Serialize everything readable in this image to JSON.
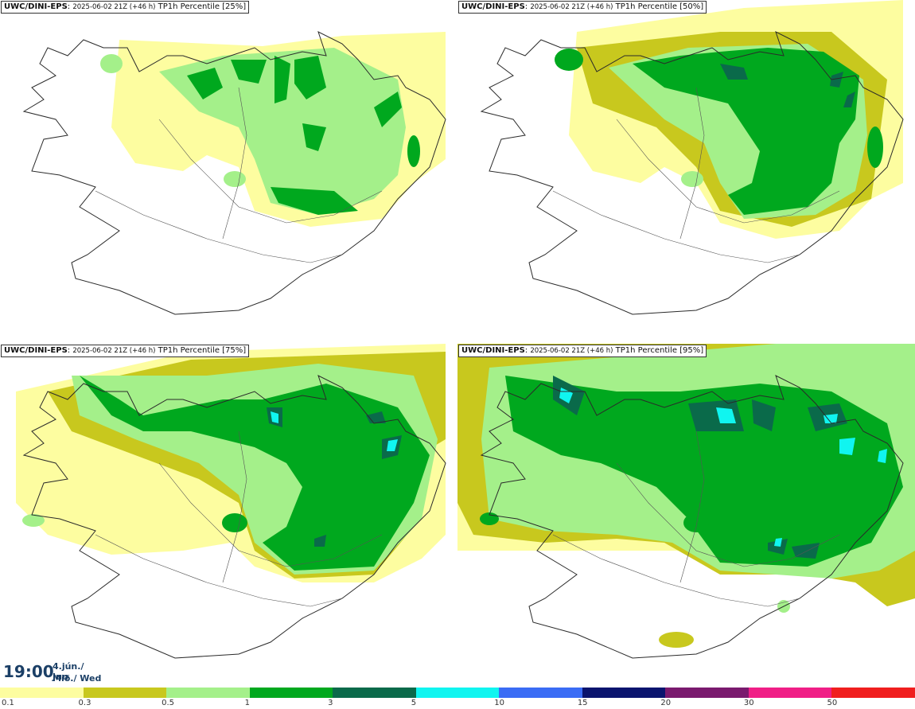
{
  "panels": [
    {
      "model": "UWC/DINI-EPS",
      "run": "2025-06-02 21Z (+46 h)",
      "product": "TP1h Percentile [25%]"
    },
    {
      "model": "UWC/DINI-EPS",
      "run": "2025-06-02 21Z (+46 h)",
      "product": "TP1h Percentile [50%]"
    },
    {
      "model": "UWC/DINI-EPS",
      "run": "2025-06-02 21Z (+46 h)",
      "product": "TP1h Percentile [75%]"
    },
    {
      "model": "UWC/DINI-EPS",
      "run": "2025-06-02 21Z (+46 h)",
      "product": "TP1h Percentile [95%]"
    }
  ],
  "valid_time": {
    "time": "19:00",
    "date_line": "4.jún./ Jun",
    "day_line": "Mið./ Wed"
  },
  "legend": {
    "colors": [
      "#fdfda0",
      "#c8c81e",
      "#a4f08a",
      "#00a81e",
      "#0a6a4a",
      "#10f5f0",
      "#3a6cf5",
      "#0a146e",
      "#7a1a6e",
      "#f01e86",
      "#f01e1e"
    ],
    "labels": [
      "0.1",
      "0.3",
      "0.5",
      "1",
      "3",
      "5",
      "10",
      "15",
      "20",
      "30",
      "50"
    ]
  },
  "colors": {
    "coast": "#2a2a2a",
    "road": "#555555",
    "title_text": "#1b3f66"
  }
}
